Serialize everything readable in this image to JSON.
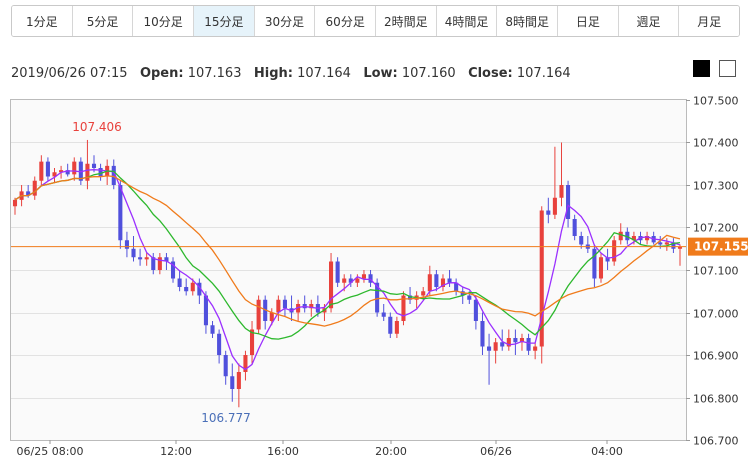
{
  "tabs": [
    "1分足",
    "5分足",
    "10分足",
    "15分足",
    "30分足",
    "60分足",
    "2時間足",
    "4時間足",
    "8時間足",
    "日足",
    "週足",
    "月足"
  ],
  "active_tab": "15分足",
  "info": {
    "datetime": "2019/06/26 07:15",
    "open_label": "Open:",
    "open": "107.163",
    "high_label": "High:",
    "high": "107.164",
    "low_label": "Low:",
    "low": "107.160",
    "close_label": "Close:",
    "close": "107.164"
  },
  "colors": {
    "up": "#e8413c",
    "down": "#5050dc",
    "ma_short": "#9b30ff",
    "ma_mid": "#2db82d",
    "ma_long": "#f07b1b",
    "price_line": "#f07b1b"
  },
  "chart_data": {
    "type": "candlestick",
    "y_axis": {
      "min": 106.7,
      "max": 107.5,
      "ticks": [
        "107.500",
        "107.400",
        "107.300",
        "107.200",
        "107.100",
        "107.000",
        "106.900",
        "106.800",
        "106.700"
      ]
    },
    "x_ticks": [
      "06/25 08:00",
      "12:00",
      "16:00",
      "20:00",
      "06/26",
      "04:00"
    ],
    "current_price": "107.155",
    "annotations": {
      "high_label": "107.406",
      "low_label": "106.777"
    },
    "candles": [
      [
        107.25,
        107.27,
        107.23,
        107.265
      ],
      [
        107.265,
        107.3,
        107.25,
        107.285
      ],
      [
        107.285,
        107.3,
        107.27,
        107.275
      ],
      [
        107.275,
        107.32,
        107.265,
        107.31
      ],
      [
        107.31,
        107.37,
        107.3,
        107.355
      ],
      [
        107.355,
        107.365,
        107.31,
        107.32
      ],
      [
        107.32,
        107.34,
        107.305,
        107.33
      ],
      [
        107.33,
        107.345,
        107.315,
        107.335
      ],
      [
        107.335,
        107.35,
        107.32,
        107.325
      ],
      [
        107.325,
        107.365,
        107.31,
        107.355
      ],
      [
        107.355,
        107.365,
        107.3,
        107.31
      ],
      [
        107.31,
        107.406,
        107.29,
        107.35
      ],
      [
        107.35,
        107.37,
        107.33,
        107.34
      ],
      [
        107.34,
        107.35,
        107.31,
        107.32
      ],
      [
        107.32,
        107.36,
        107.3,
        107.345
      ],
      [
        107.345,
        107.36,
        107.29,
        107.3
      ],
      [
        107.3,
        107.31,
        107.15,
        107.17
      ],
      [
        107.17,
        107.19,
        107.13,
        107.15
      ],
      [
        107.15,
        107.18,
        107.12,
        107.13
      ],
      [
        107.13,
        107.15,
        107.11,
        107.125
      ],
      [
        107.125,
        107.14,
        107.11,
        107.13
      ],
      [
        107.13,
        107.14,
        107.09,
        107.1
      ],
      [
        107.1,
        107.14,
        107.09,
        107.13
      ],
      [
        107.13,
        107.14,
        107.1,
        107.12
      ],
      [
        107.12,
        107.13,
        107.07,
        107.08
      ],
      [
        107.08,
        107.1,
        107.05,
        107.06
      ],
      [
        107.06,
        107.08,
        107.04,
        107.05
      ],
      [
        107.05,
        107.08,
        107.04,
        107.07
      ],
      [
        107.07,
        107.08,
        107.02,
        107.04
      ],
      [
        107.04,
        107.05,
        106.95,
        106.97
      ],
      [
        106.97,
        106.98,
        106.94,
        106.95
      ],
      [
        106.95,
        106.96,
        106.88,
        106.9
      ],
      [
        106.9,
        106.91,
        106.83,
        106.85
      ],
      [
        106.85,
        106.88,
        106.79,
        106.82
      ],
      [
        106.82,
        106.88,
        106.777,
        106.86
      ],
      [
        106.86,
        106.91,
        106.84,
        106.9
      ],
      [
        106.9,
        106.98,
        106.88,
        106.96
      ],
      [
        106.96,
        107.04,
        106.95,
        107.03
      ],
      [
        107.03,
        107.04,
        106.96,
        106.98
      ],
      [
        106.98,
        107.01,
        106.97,
        107.0
      ],
      [
        107.0,
        107.04,
        106.98,
        107.03
      ],
      [
        107.03,
        107.04,
        106.99,
        107.01
      ],
      [
        107.01,
        107.04,
        106.98,
        107.0
      ],
      [
        107.0,
        107.03,
        106.98,
        107.02
      ],
      [
        107.02,
        107.04,
        107.0,
        107.01
      ],
      [
        107.01,
        107.03,
        106.99,
        107.02
      ],
      [
        107.02,
        107.04,
        106.99,
        107.0
      ],
      [
        107.0,
        107.02,
        106.98,
        107.01
      ],
      [
        107.01,
        107.14,
        107.0,
        107.12
      ],
      [
        107.12,
        107.13,
        107.06,
        107.07
      ],
      [
        107.07,
        107.09,
        107.05,
        107.08
      ],
      [
        107.08,
        107.09,
        107.06,
        107.07
      ],
      [
        107.07,
        107.09,
        107.06,
        107.08
      ],
      [
        107.08,
        107.1,
        107.07,
        107.09
      ],
      [
        107.09,
        107.1,
        107.06,
        107.07
      ],
      [
        107.07,
        107.08,
        106.99,
        107.0
      ],
      [
        107.0,
        107.02,
        106.98,
        106.99
      ],
      [
        106.99,
        107.0,
        106.94,
        106.95
      ],
      [
        106.95,
        106.99,
        106.94,
        106.98
      ],
      [
        106.98,
        107.05,
        106.97,
        107.04
      ],
      [
        107.04,
        107.06,
        107.02,
        107.03
      ],
      [
        107.03,
        107.05,
        107.01,
        107.04
      ],
      [
        107.04,
        107.06,
        107.03,
        107.05
      ],
      [
        107.05,
        107.11,
        107.04,
        107.09
      ],
      [
        107.09,
        107.1,
        107.05,
        107.06
      ],
      [
        107.06,
        107.09,
        107.05,
        107.08
      ],
      [
        107.08,
        107.1,
        107.06,
        107.07
      ],
      [
        107.07,
        107.08,
        107.04,
        107.05
      ],
      [
        107.05,
        107.06,
        107.02,
        107.04
      ],
      [
        107.04,
        107.05,
        107.02,
        107.03
      ],
      [
        107.03,
        107.04,
        106.96,
        106.98
      ],
      [
        106.98,
        107.0,
        106.9,
        106.92
      ],
      [
        106.92,
        106.95,
        106.83,
        106.91
      ],
      [
        106.91,
        106.94,
        106.88,
        106.93
      ],
      [
        106.93,
        106.96,
        106.91,
        106.92
      ],
      [
        106.92,
        106.96,
        106.91,
        106.94
      ],
      [
        106.94,
        106.96,
        106.9,
        106.93
      ],
      [
        106.93,
        106.95,
        106.91,
        106.94
      ],
      [
        106.94,
        106.95,
        106.9,
        106.91
      ],
      [
        106.91,
        106.93,
        106.89,
        106.92
      ],
      [
        106.92,
        107.25,
        106.88,
        107.24
      ],
      [
        107.24,
        107.27,
        107.21,
        107.23
      ],
      [
        107.23,
        107.39,
        107.22,
        107.27
      ],
      [
        107.27,
        107.4,
        107.25,
        107.3
      ],
      [
        107.3,
        107.31,
        107.2,
        107.22
      ],
      [
        107.22,
        107.23,
        107.17,
        107.18
      ],
      [
        107.18,
        107.19,
        107.15,
        107.16
      ],
      [
        107.16,
        107.18,
        107.14,
        107.15
      ],
      [
        107.15,
        107.16,
        107.06,
        107.08
      ],
      [
        107.08,
        107.14,
        107.07,
        107.13
      ],
      [
        107.13,
        107.15,
        107.1,
        107.12
      ],
      [
        107.12,
        107.18,
        107.11,
        107.17
      ],
      [
        107.17,
        107.21,
        107.16,
        107.19
      ],
      [
        107.19,
        107.2,
        107.16,
        107.17
      ],
      [
        107.17,
        107.19,
        107.16,
        107.18
      ],
      [
        107.18,
        107.19,
        107.16,
        107.17
      ],
      [
        107.17,
        107.19,
        107.16,
        107.18
      ],
      [
        107.18,
        107.19,
        107.16,
        107.165
      ],
      [
        107.165,
        107.18,
        107.15,
        107.16
      ],
      [
        107.16,
        107.175,
        107.145,
        107.165
      ],
      [
        107.165,
        107.175,
        107.14,
        107.15
      ],
      [
        107.15,
        107.16,
        107.11,
        107.155
      ]
    ]
  }
}
